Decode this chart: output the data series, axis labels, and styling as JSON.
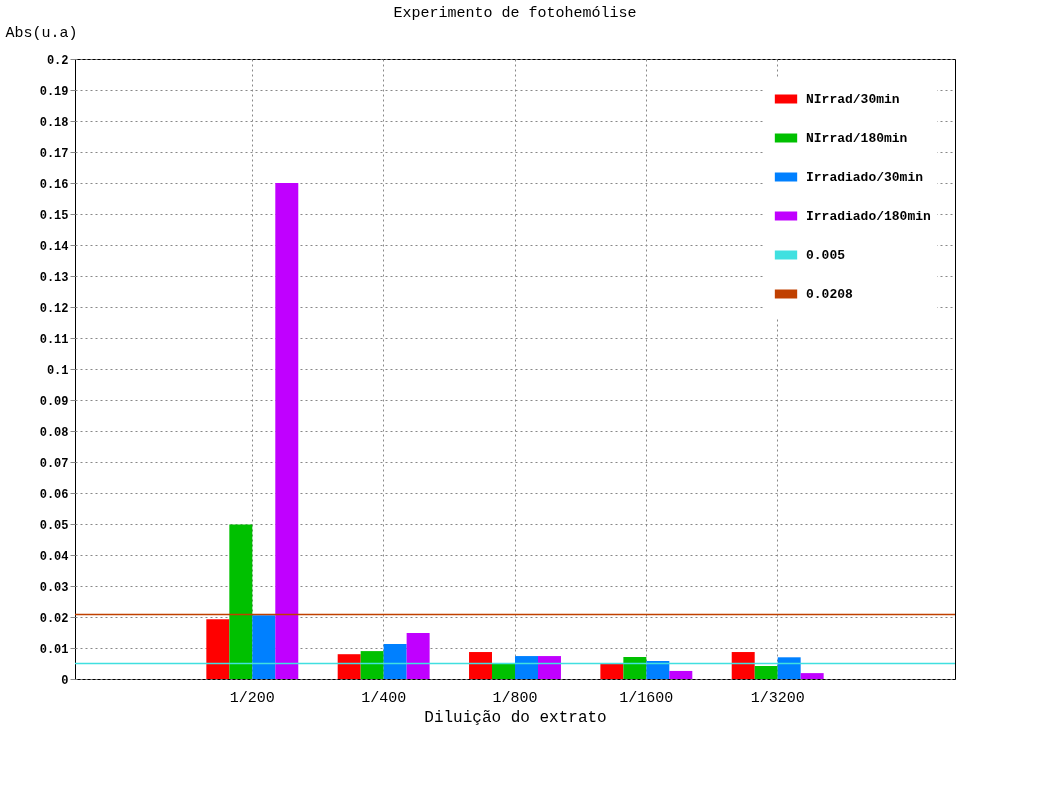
{
  "chart_data": {
    "type": "bar",
    "title": "Experimento de fotohemólise",
    "xlabel": "Diluição do extrato",
    "ylabel": "Abs(u.a)",
    "categories": [
      "1/200",
      "1/400",
      "1/800",
      "1/1600",
      "1/3200"
    ],
    "series": [
      {
        "name": "NIrrad/30min",
        "color": "#ff0000",
        "values": [
          0.0193,
          0.008,
          0.0087,
          0.0051,
          0.0087
        ]
      },
      {
        "name": "NIrrad/180min",
        "color": "#00c000",
        "values": [
          0.0498,
          0.009,
          0.0051,
          0.0071,
          0.0042
        ]
      },
      {
        "name": "Irradiado/30min",
        "color": "#0080ff",
        "values": [
          0.0206,
          0.0113,
          0.0074,
          0.0058,
          0.007
        ]
      },
      {
        "name": "Irradiado/180min",
        "color": "#c000ff",
        "values": [
          0.16,
          0.0148,
          0.0074,
          0.0026,
          0.0019
        ]
      }
    ],
    "ref_lines": [
      {
        "axis": "y",
        "value": 0.005,
        "label": "0.005",
        "color": "#40e0e0"
      },
      {
        "axis": "y",
        "value": 0.0208,
        "label": "0.0208",
        "color": "#c04000"
      }
    ],
    "ylim": [
      0,
      0.2
    ],
    "yticks": [
      0,
      0.01,
      0.02,
      0.03,
      0.04,
      0.05,
      0.06,
      0.07,
      0.08,
      0.09,
      0.1,
      0.11,
      0.12,
      0.13,
      0.14,
      0.15,
      0.16,
      0.17,
      0.18,
      0.19,
      0.2
    ],
    "grid": true,
    "legend": "top right"
  }
}
